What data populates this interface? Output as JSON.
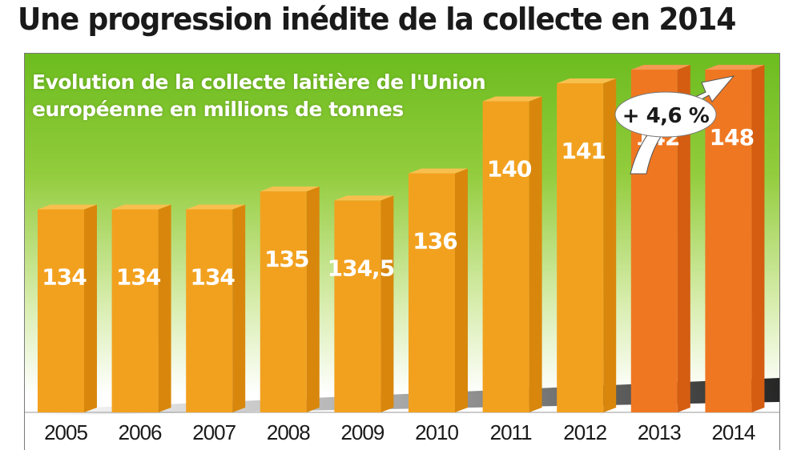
{
  "headline": "Une progression inédite de la collecte en 2014",
  "subtitle": "Evolution de la collecte laitière de l'Union européenne en millions de tonnes",
  "callout": "+ 4,6 %",
  "colors": {
    "panel_top": "#6cbc1f",
    "panel_bottom": "#ffffff",
    "bar_front": "#f2a11f",
    "bar_side": "#d8870c",
    "bar_top": "#f7c04e",
    "highlight_front": "#ef7722",
    "highlight_side": "#d45d12",
    "highlight_top": "#f49a52",
    "label": "#ffffff",
    "year_text": "#1a1a1a"
  },
  "chart_data": {
    "type": "bar",
    "title": "Une progression inédite de la collecte en 2014",
    "subtitle": "Evolution de la collecte laitière de l'Union européenne en millions de tonnes",
    "categories": [
      "2005",
      "2006",
      "2007",
      "2008",
      "2009",
      "2010",
      "2011",
      "2012",
      "2013",
      "2014"
    ],
    "values": [
      134,
      134,
      134,
      135,
      134.5,
      136,
      140,
      141,
      142,
      148
    ],
    "value_labels": [
      "134",
      "134",
      "134",
      "135",
      "134,5",
      "136",
      "140",
      "141",
      "142",
      "148"
    ],
    "highlighted": [
      "2013",
      "2014"
    ],
    "annotation": "+ 4,6 %",
    "xlabel": "",
    "ylabel": "",
    "grid": false,
    "legend": "none"
  }
}
